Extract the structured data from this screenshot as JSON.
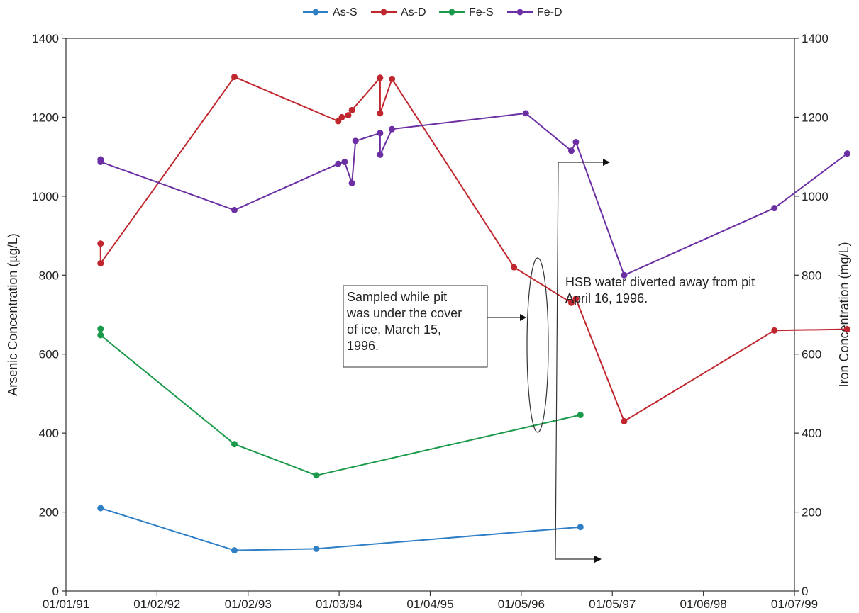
{
  "chart_data": {
    "type": "line",
    "title": "",
    "xlabel": "",
    "ylabel": "Arsenic Concentration (µg/L)",
    "y2label": "Iron Concentration (mg/L)",
    "ylim": [
      0,
      1400
    ],
    "y2lim": [
      0,
      1400
    ],
    "y_ticks": [
      "0",
      "200",
      "400",
      "600",
      "800",
      "1000",
      "1200",
      "1400"
    ],
    "y2_ticks": [
      "0",
      "200",
      "400",
      "600",
      "800",
      "1000",
      "1200",
      "1400"
    ],
    "x_ticks": [
      "01/01/91",
      "01/02/92",
      "01/02/93",
      "01/03/94",
      "01/04/95",
      "01/05/96",
      "01/05/97",
      "01/06/98",
      "01/07/99"
    ],
    "grid": false,
    "legend_position": "top-center",
    "series": [
      {
        "name": "As-S",
        "color": "#2f7fc6",
        "axis": "left",
        "points": [
          [
            0.38,
            210
          ],
          [
            1.85,
            103
          ],
          [
            2.75,
            107
          ],
          [
            5.65,
            162
          ]
        ]
      },
      {
        "name": "As-D",
        "color": "#c0262d",
        "axis": "left",
        "points": [
          [
            0.38,
            880
          ],
          [
            0.38,
            830
          ],
          [
            1.85,
            1302
          ],
          [
            2.99,
            1190
          ],
          [
            3.03,
            1200
          ],
          [
            3.1,
            1205
          ],
          [
            3.14,
            1218
          ],
          [
            3.45,
            1300
          ],
          [
            3.45,
            1210
          ],
          [
            3.58,
            1297
          ],
          [
            4.92,
            820
          ],
          [
            5.55,
            730
          ],
          [
            5.6,
            740
          ],
          [
            6.13,
            430
          ],
          [
            7.78,
            660
          ],
          [
            8.58,
            663
          ]
        ]
      },
      {
        "name": "Fe-S",
        "color": "#1a9a4a",
        "axis": "right",
        "points": [
          [
            0.38,
            664
          ],
          [
            0.38,
            648
          ],
          [
            1.85,
            372
          ],
          [
            2.75,
            293
          ],
          [
            5.65,
            446
          ]
        ]
      },
      {
        "name": "Fe-D",
        "color": "#6b2fa3",
        "axis": "right",
        "points": [
          [
            0.38,
            1093
          ],
          [
            0.38,
            1087
          ],
          [
            1.85,
            965
          ],
          [
            2.99,
            1082
          ],
          [
            3.06,
            1087
          ],
          [
            3.14,
            1033
          ],
          [
            3.18,
            1140
          ],
          [
            3.45,
            1160
          ],
          [
            3.45,
            1105
          ],
          [
            3.58,
            1170
          ],
          [
            5.05,
            1210
          ],
          [
            5.55,
            1115
          ],
          [
            5.6,
            1137
          ],
          [
            6.13,
            800
          ],
          [
            7.78,
            970
          ],
          [
            8.58,
            1108
          ]
        ]
      }
    ],
    "annotations": [
      {
        "lines": [
          "Sampled while pit",
          "was under the cover",
          "of ice, March 15,",
          "1996."
        ]
      },
      {
        "lines": [
          "HSB water diverted away from pit",
          "April 16, 1996."
        ]
      }
    ]
  }
}
